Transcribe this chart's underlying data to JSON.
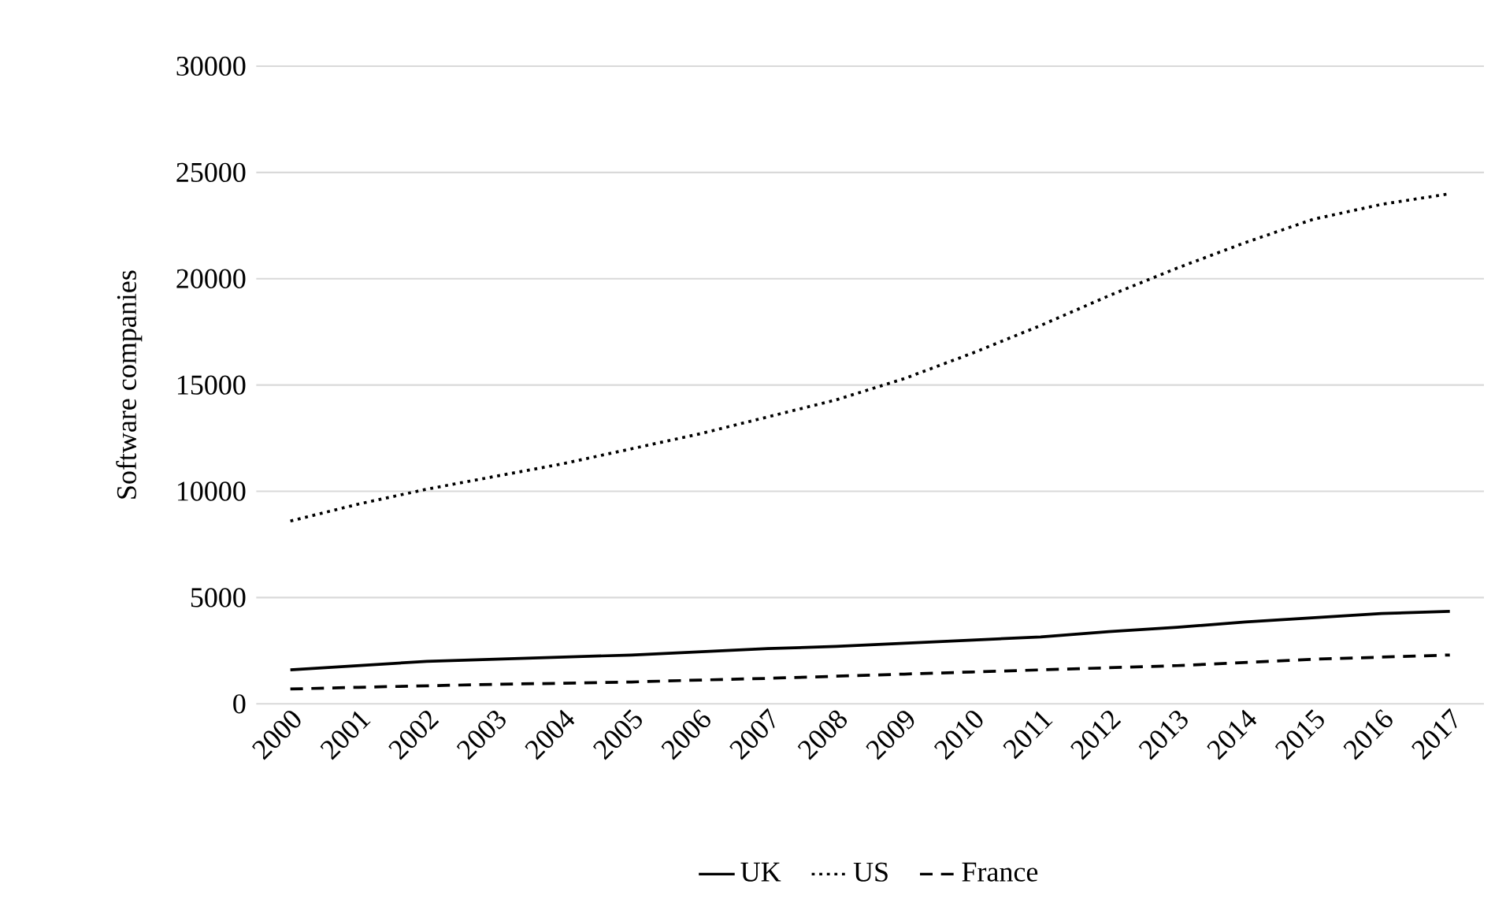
{
  "chart_data": {
    "type": "line",
    "ylabel": "Software companies",
    "categories": [
      "2000",
      "2001",
      "2002",
      "2003",
      "2004",
      "2005",
      "2006",
      "2007",
      "2008",
      "2009",
      "2010",
      "2011",
      "2012",
      "2013",
      "2014",
      "2015",
      "2016",
      "2017"
    ],
    "series": [
      {
        "name": "UK",
        "color": "#000000",
        "line_style": "solid",
        "values": [
          1600,
          1800,
          2000,
          2100,
          2200,
          2300,
          2450,
          2600,
          2700,
          2850,
          3000,
          3150,
          3400,
          3600,
          3850,
          4050,
          4250,
          4350
        ]
      },
      {
        "name": "US",
        "color": "#000000",
        "line_style": "dotted",
        "values": [
          8600,
          9400,
          10100,
          10700,
          11300,
          12000,
          12700,
          13500,
          14300,
          15300,
          16500,
          17800,
          19200,
          20500,
          21700,
          22800,
          23500,
          24000
        ]
      },
      {
        "name": "France",
        "color": "#000000",
        "line_style": "dashed",
        "values": [
          700,
          780,
          850,
          920,
          970,
          1030,
          1120,
          1200,
          1300,
          1400,
          1500,
          1600,
          1700,
          1800,
          1950,
          2100,
          2200,
          2300
        ]
      }
    ],
    "ylim": [
      0,
      30000
    ],
    "yticks": [
      0,
      5000,
      10000,
      15000,
      20000,
      25000,
      30000
    ],
    "grid": "y",
    "legend": "bottom",
    "marker": "none"
  }
}
